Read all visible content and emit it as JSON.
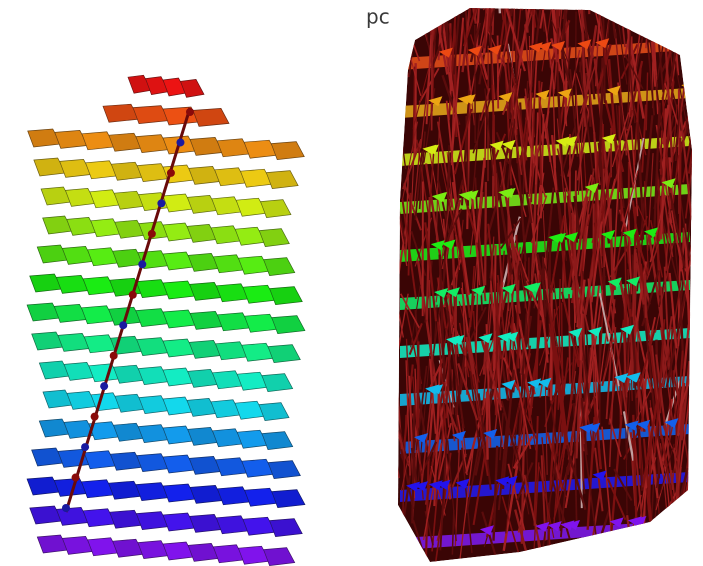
{
  "label": "pc"
}
